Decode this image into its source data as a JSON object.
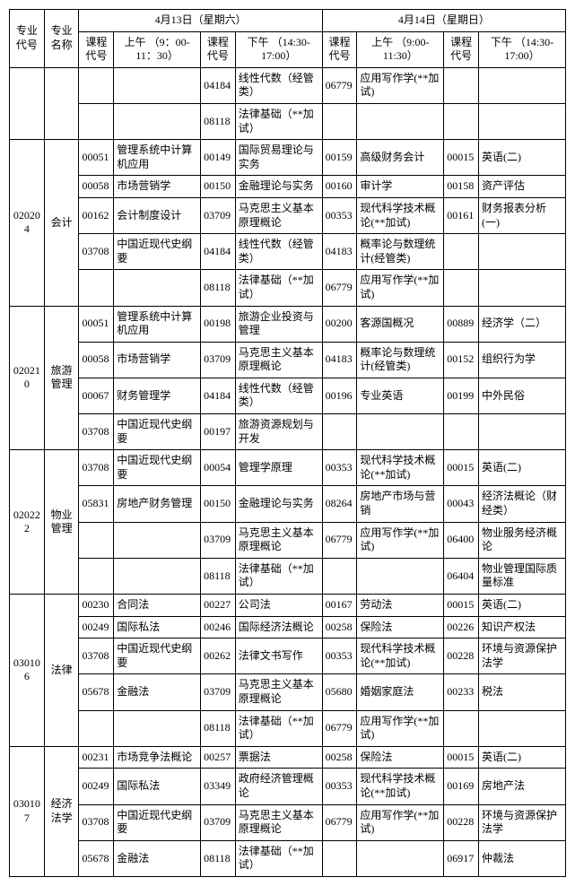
{
  "header": {
    "major_code": "专业代号",
    "major_name": "专业名称",
    "day1": "4月13日（星期六）",
    "day2": "4月14日（星期日）",
    "course_code": "课程代号",
    "am1": "上午\n（9：00-11：30）",
    "pm1": "下午\n（14:30-17:00）",
    "am2": "上午\n（9:00-11:30）",
    "pm2": "下午\n（14:30-17:00）"
  },
  "groups": [
    {
      "major_code": "",
      "major_name": "",
      "rows": [
        {
          "c1": "",
          "n1": "",
          "c2": "04184",
          "n2": "线性代数（经管类）",
          "c3": "06779",
          "n3": "应用写作学(**加试)",
          "c4": "",
          "n4": ""
        },
        {
          "c1": "",
          "n1": "",
          "c2": "08118",
          "n2": "法律基础（**加试）",
          "c3": "",
          "n3": "",
          "c4": "",
          "n4": ""
        }
      ]
    },
    {
      "major_code": "020204",
      "major_name": "会计",
      "rows": [
        {
          "c1": "00051",
          "n1": "管理系统中计算机应用",
          "c2": "00149",
          "n2": "国际贸易理论与实务",
          "c3": "00159",
          "n3": "高级财务会计",
          "c4": "00015",
          "n4": "英语(二)"
        },
        {
          "c1": "00058",
          "n1": "市场营销学",
          "c2": "00150",
          "n2": "金融理论与实务",
          "c3": "00160",
          "n3": "审计学",
          "c4": "00158",
          "n4": "资产评估"
        },
        {
          "c1": "00162",
          "n1": "会计制度设计",
          "c2": "03709",
          "n2": "马克思主义基本原理概论",
          "c3": "00353",
          "n3": "现代科学技术概论(**加试)",
          "c4": "00161",
          "n4": "财务报表分析(一)"
        },
        {
          "c1": "03708",
          "n1": "中国近现代史纲要",
          "c2": "04184",
          "n2": "线性代数（经管类）",
          "c3": "04183",
          "n3": "概率论与数理统计(经管类)",
          "c4": "",
          "n4": ""
        },
        {
          "c1": "",
          "n1": "",
          "c2": "08118",
          "n2": "法律基础（**加试）",
          "c3": "06779",
          "n3": "应用写作学(**加试)",
          "c4": "",
          "n4": ""
        }
      ]
    },
    {
      "major_code": "020210",
      "major_name": "旅游管理",
      "rows": [
        {
          "c1": "00051",
          "n1": "管理系统中计算机应用",
          "c2": "00198",
          "n2": "旅游企业投资与管理",
          "c3": "00200",
          "n3": "客源国概况",
          "c4": "00889",
          "n4": "经济学（二）"
        },
        {
          "c1": "00058",
          "n1": "市场营销学",
          "c2": "03709",
          "n2": "马克思主义基本原理概论",
          "c3": "04183",
          "n3": "概率论与数理统计(经管类)",
          "c4": "00152",
          "n4": "组织行为学"
        },
        {
          "c1": "00067",
          "n1": "财务管理学",
          "c2": "04184",
          "n2": "线性代数（经管类）",
          "c3": "00196",
          "n3": "专业英语",
          "c4": "00199",
          "n4": "中外民俗"
        },
        {
          "c1": "03708",
          "n1": "中国近现代史纲要",
          "c2": "00197",
          "n2": "旅游资源规划与开发",
          "c3": "",
          "n3": "",
          "c4": "",
          "n4": ""
        }
      ]
    },
    {
      "major_code": "020222",
      "major_name": "物业管理",
      "rows": [
        {
          "c1": "03708",
          "n1": "中国近现代史纲要",
          "c2": "00054",
          "n2": "管理学原理",
          "c3": "00353",
          "n3": "现代科学技术概论(**加试)",
          "c4": "00015",
          "n4": "英语(二)"
        },
        {
          "c1": "05831",
          "n1": "房地产财务管理",
          "c2": "00150",
          "n2": "金融理论与实务",
          "c3": "08264",
          "n3": "房地产市场与营销",
          "c4": "00043",
          "n4": "经济法概论（财经类）"
        },
        {
          "c1": "",
          "n1": "",
          "c2": "03709",
          "n2": "马克思主义基本原理概论",
          "c3": "06779",
          "n3": "应用写作学(**加试)",
          "c4": "06400",
          "n4": "物业服务经济概论"
        },
        {
          "c1": "",
          "n1": "",
          "c2": "08118",
          "n2": "法律基础（**加试）",
          "c3": "",
          "n3": "",
          "c4": "06404",
          "n4": "物业管理国际质量标准"
        }
      ]
    },
    {
      "major_code": "030106",
      "major_name": "法律",
      "rows": [
        {
          "c1": "00230",
          "n1": "合同法",
          "c2": "00227",
          "n2": "公司法",
          "c3": "00167",
          "n3": "劳动法",
          "c4": "00015",
          "n4": "英语(二)"
        },
        {
          "c1": "00249",
          "n1": "国际私法",
          "c2": "00246",
          "n2": "国际经济法概论",
          "c3": "00258",
          "n3": "保险法",
          "c4": "00226",
          "n4": "知识产权法"
        },
        {
          "c1": "03708",
          "n1": "中国近现代史纲要",
          "c2": "00262",
          "n2": "法律文书写作",
          "c3": "00353",
          "n3": "现代科学技术概论(**加试)",
          "c4": "00228",
          "n4": "环境与资源保护法学"
        },
        {
          "c1": "05678",
          "n1": "金融法",
          "c2": "03709",
          "n2": "马克思主义基本原理概论",
          "c3": "05680",
          "n3": "婚姻家庭法",
          "c4": "00233",
          "n4": "税法"
        },
        {
          "c1": "",
          "n1": "",
          "c2": "08118",
          "n2": "法律基础（**加试）",
          "c3": "06779",
          "n3": "应用写作学(**加试)",
          "c4": "",
          "n4": ""
        }
      ]
    },
    {
      "major_code": "030107",
      "major_name": "经济法学",
      "rows": [
        {
          "c1": "00231",
          "n1": "市场竞争法概论",
          "c2": "00257",
          "n2": "票据法",
          "c3": "00258",
          "n3": "保险法",
          "c4": "00015",
          "n4": "英语(二)"
        },
        {
          "c1": "00249",
          "n1": "国际私法",
          "c2": "03349",
          "n2": "政府经济管理概论",
          "c3": "00353",
          "n3": "现代科学技术概论(**加试)",
          "c4": "00169",
          "n4": "房地产法"
        },
        {
          "c1": "03708",
          "n1": "中国近现代史纲要",
          "c2": "03709",
          "n2": "马克思主义基本原理概论",
          "c3": "06779",
          "n3": "应用写作学(**加试)",
          "c4": "00228",
          "n4": "环境与资源保护法学"
        },
        {
          "c1": "05678",
          "n1": "金融法",
          "c2": "08118",
          "n2": "法律基础（**加试）",
          "c3": "",
          "n3": "",
          "c4": "06917",
          "n4": "仲裁法"
        }
      ]
    }
  ]
}
